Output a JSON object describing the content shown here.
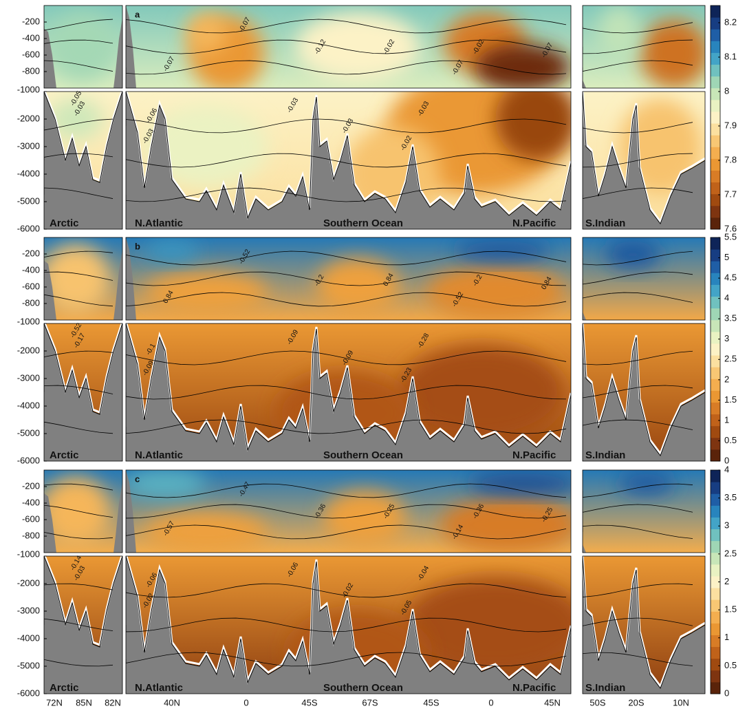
{
  "chart_data": [
    {
      "type": "contour",
      "panel_letter": "a",
      "clim": [
        7.6,
        8.25
      ],
      "cticks": [
        7.6,
        7.7,
        7.8,
        7.9,
        8,
        8.1,
        8.2
      ],
      "contour_labels": [
        "-0.07",
        "-0.07",
        "-0.12",
        "-0.02",
        "-0.07",
        "-0.02",
        "-0.07",
        "-0.05",
        "-0.03",
        "-0.06",
        "-0.03",
        "-0.03",
        "-0.03",
        "-0.03",
        "-0.02"
      ]
    },
    {
      "type": "contour",
      "panel_letter": "b",
      "clim": [
        0,
        5.5
      ],
      "cticks": [
        0,
        0.5,
        1,
        1.5,
        2,
        2.5,
        3,
        3.5,
        4,
        4.5,
        5,
        5.5
      ],
      "contour_labels": [
        "0.84",
        "-0.52",
        "-0.2",
        "0.84",
        "-0.52",
        "-0.2",
        "0.84",
        "-0.52",
        "-0.17",
        "-0.1",
        "-0.09",
        "-0.09",
        "-0.09",
        "-0.28",
        "-0.23"
      ]
    },
    {
      "type": "contour",
      "panel_letter": "c",
      "clim": [
        0,
        4
      ],
      "cticks": [
        0,
        0.5,
        1,
        1.5,
        2,
        2.5,
        3,
        3.5,
        4
      ],
      "contour_labels": [
        "-0.57",
        "-0.47",
        "-0.36",
        "-0.25",
        "-0.14",
        "-0.36",
        "-0.25",
        "-0.14",
        "-0.03",
        "-0.06",
        "-0.02",
        "-0.06",
        "-0.02",
        "-0.04",
        "-0.05"
      ]
    }
  ],
  "colormap": [
    "#5a230a",
    "#7e3410",
    "#a04a10",
    "#c0621a",
    "#d87c26",
    "#ea9733",
    "#f4ae4f",
    "#f8c774",
    "#fbe0a0",
    "#fcf2c6",
    "#e9f2c2",
    "#c8e6b8",
    "#9fd6b5",
    "#70c1bf",
    "#43a4c7",
    "#2884bd",
    "#1f5ea6",
    "#173d82",
    "#0e2458"
  ],
  "depth_axis": {
    "ylim_upper": [
      -1000,
      0
    ],
    "yticks_upper": [
      -200,
      -400,
      -600,
      -800
    ],
    "ylim_lower": [
      -6000,
      -1000
    ],
    "yticks_lower": [
      -1000,
      -2000,
      -3000,
      -4000,
      -5000,
      -6000
    ]
  },
  "regions": [
    "Arctic",
    "N.Atlantic",
    "Southern Ocean",
    "N.Pacific",
    "S.Indian"
  ],
  "x_labels": [
    "72N",
    "85N",
    "82N",
    "40N",
    "0",
    "45S",
    "67S",
    "45S",
    "0",
    "45N",
    "50S",
    "20S",
    "10N"
  ]
}
